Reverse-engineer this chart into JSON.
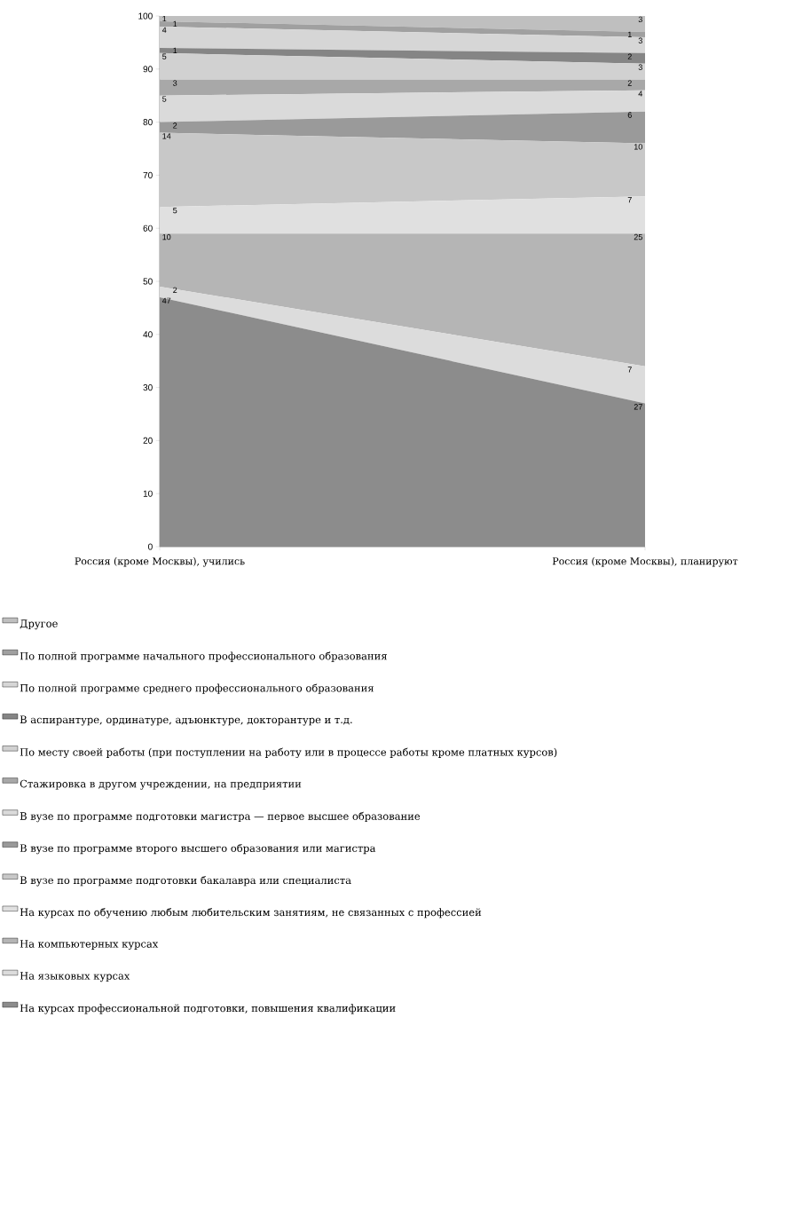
{
  "chart_data": {
    "type": "area",
    "stacked": true,
    "categories": [
      "Россия (кроме Москвы), учились",
      "Россия (кроме Москвы), планируют"
    ],
    "ylim": [
      0,
      100
    ],
    "yticks": [
      0,
      10,
      20,
      30,
      40,
      50,
      60,
      70,
      80,
      90,
      100
    ],
    "grid": false,
    "legend": "bottom",
    "data_labels": true,
    "series": [
      {
        "name": "На курсах профессиональной подготовки, повышения квалификации",
        "color": "#8c8c8c",
        "values": [
          47,
          27
        ]
      },
      {
        "name": "На языковых курсах",
        "color": "#dcdcdc",
        "values": [
          2,
          7
        ]
      },
      {
        "name": "На компьютерных курсах",
        "color": "#b5b5b5",
        "values": [
          10,
          25
        ]
      },
      {
        "name": "На курсах по обучению любым любительским занятиям, не связанных с профессией",
        "color": "#e0e0e0",
        "values": [
          5,
          7
        ]
      },
      {
        "name": "В вузе по программе подготовки бакалавра или специалиста",
        "color": "#c8c8c8",
        "values": [
          14,
          10
        ]
      },
      {
        "name": "В вузе по программе второго высшего образования или магистра",
        "color": "#9a9a9a",
        "values": [
          2,
          6
        ]
      },
      {
        "name": "В вузе по программе подготовки магистра — первое высшее образование",
        "color": "#dadada",
        "values": [
          5,
          4
        ]
      },
      {
        "name": "Стажировка в другом учреждении, на предприятии",
        "color": "#a8a8a8",
        "values": [
          3,
          2
        ]
      },
      {
        "name": "По месту своей работы (при поступлении на работу или в процессе работы кроме платных курсов)",
        "color": "#d1d1d1",
        "values": [
          5,
          3
        ]
      },
      {
        "name": "В аспирантуре, ординатуре, адъюнктуре, докторантуре и т.д.",
        "color": "#858585",
        "values": [
          1,
          2
        ]
      },
      {
        "name": "По полной программе среднего профессионального образования",
        "color": "#d6d6d6",
        "values": [
          4,
          3
        ]
      },
      {
        "name": "По полной программе начального профессионального образования",
        "color": "#a0a0a0",
        "values": [
          1,
          1
        ]
      },
      {
        "name": "Другое",
        "color": "#bfbfbf",
        "values": [
          1,
          3
        ]
      }
    ]
  }
}
